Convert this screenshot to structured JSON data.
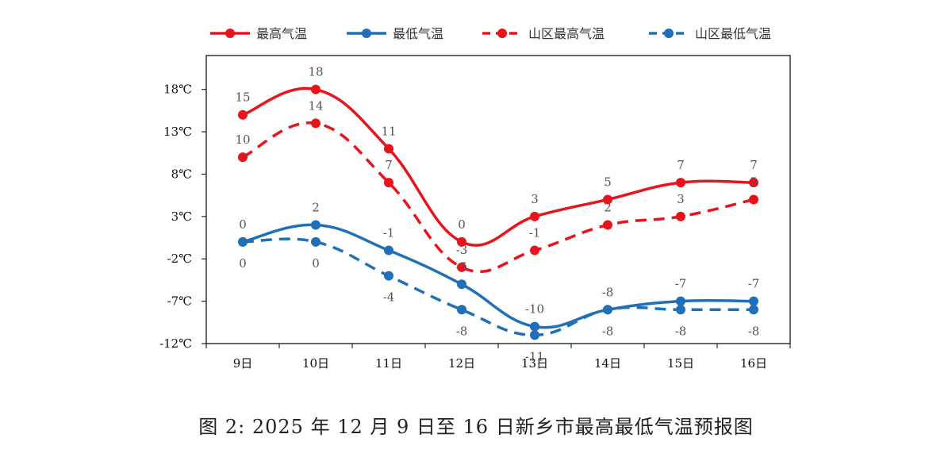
{
  "chart_data": {
    "type": "line",
    "title": "图 2: 2025 年 12 月 9 日至 16 日新乡市最高最低气温预报图",
    "categories": [
      "9日",
      "10日",
      "11日",
      "12日",
      "13日",
      "14日",
      "15日",
      "16日"
    ],
    "ylim": [
      -12,
      22
    ],
    "yticks": [
      18,
      13,
      8,
      3,
      -2,
      -7,
      -12
    ],
    "ytick_labels": [
      "18℃",
      "13℃",
      "8℃",
      "3℃",
      "-2℃",
      "-7℃",
      "-12℃"
    ],
    "legend_position": "top",
    "grid": false,
    "series": [
      {
        "name": "最高气温",
        "color": "#e8141c",
        "dashed": false,
        "values": [
          15,
          18,
          11,
          0,
          3,
          5,
          7,
          7
        ],
        "label_side": "above"
      },
      {
        "name": "最低气温",
        "color": "#1f70b8",
        "dashed": false,
        "values": [
          0,
          2,
          -1,
          -5,
          -10,
          -8,
          -7,
          -7
        ],
        "label_side": "above"
      },
      {
        "name": "山区最高气温",
        "color": "#e8141c",
        "dashed": true,
        "values": [
          10,
          14,
          7,
          -3,
          -1,
          2,
          3,
          5
        ],
        "label_side": "above"
      },
      {
        "name": "山区最低气温",
        "color": "#1f70b8",
        "dashed": true,
        "values": [
          0,
          0,
          -4,
          -8,
          -11,
          -8,
          -8,
          -8
        ],
        "label_side": "below"
      }
    ]
  }
}
